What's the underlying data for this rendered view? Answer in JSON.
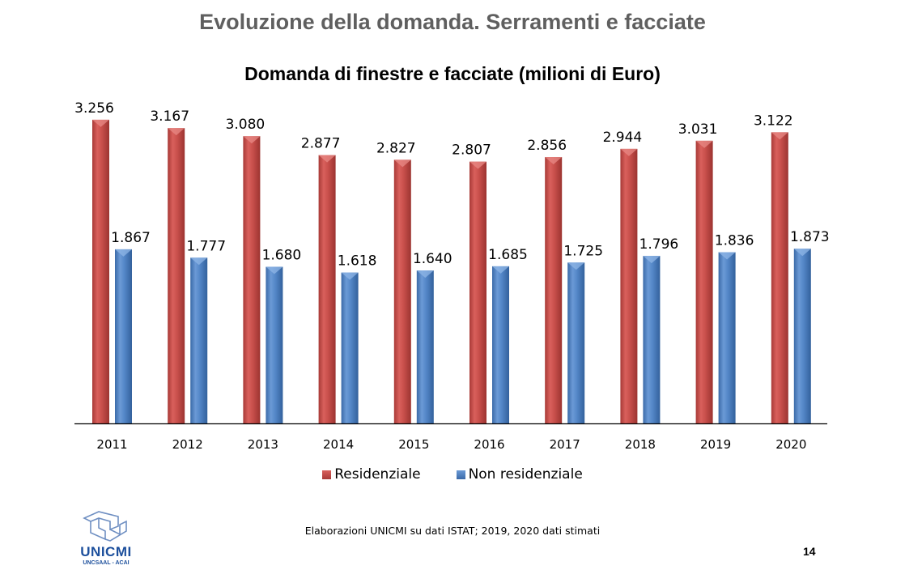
{
  "slide": {
    "title": "Evoluzione della domanda. Serramenti e facciate",
    "source_note": "Elaborazioni UNICMI su dati ISTAT; 2019, 2020 dati stimati",
    "page_number": "14",
    "logo": {
      "name": "UNICMI",
      "subtitle": "UNCSAAL - ACAI",
      "color": "#1c4f9c"
    }
  },
  "chart_data": {
    "type": "bar",
    "title": "Domanda di finestre e facciate (milioni di Euro)",
    "xlabel": "",
    "ylabel": "",
    "ylim": [
      0,
      4540
    ],
    "grid": false,
    "legend_position": "bottom",
    "categories": [
      "2011",
      "2012",
      "2013",
      "2014",
      "2015",
      "2016",
      "2017",
      "2018",
      "2019",
      "2020"
    ],
    "series": [
      {
        "name": "Residenziale",
        "color": "#c0504d",
        "values": [
          3256,
          3167,
          3080,
          2877,
          2827,
          2807,
          2856,
          2944,
          3031,
          3122
        ],
        "labels": [
          "3.256",
          "3.167",
          "3.080",
          "2.877",
          "2.827",
          "2.807",
          "2.856",
          "2.944",
          "3.031",
          "3.122"
        ]
      },
      {
        "name": "Non residenziale",
        "color": "#4f81bd",
        "values": [
          1867,
          1777,
          1680,
          1618,
          1640,
          1685,
          1725,
          1796,
          1836,
          1873
        ],
        "labels": [
          "1.867",
          "1.777",
          "1.680",
          "1.618",
          "1.640",
          "1.685",
          "1.725",
          "1.796",
          "1.836",
          "1.873"
        ]
      }
    ]
  }
}
